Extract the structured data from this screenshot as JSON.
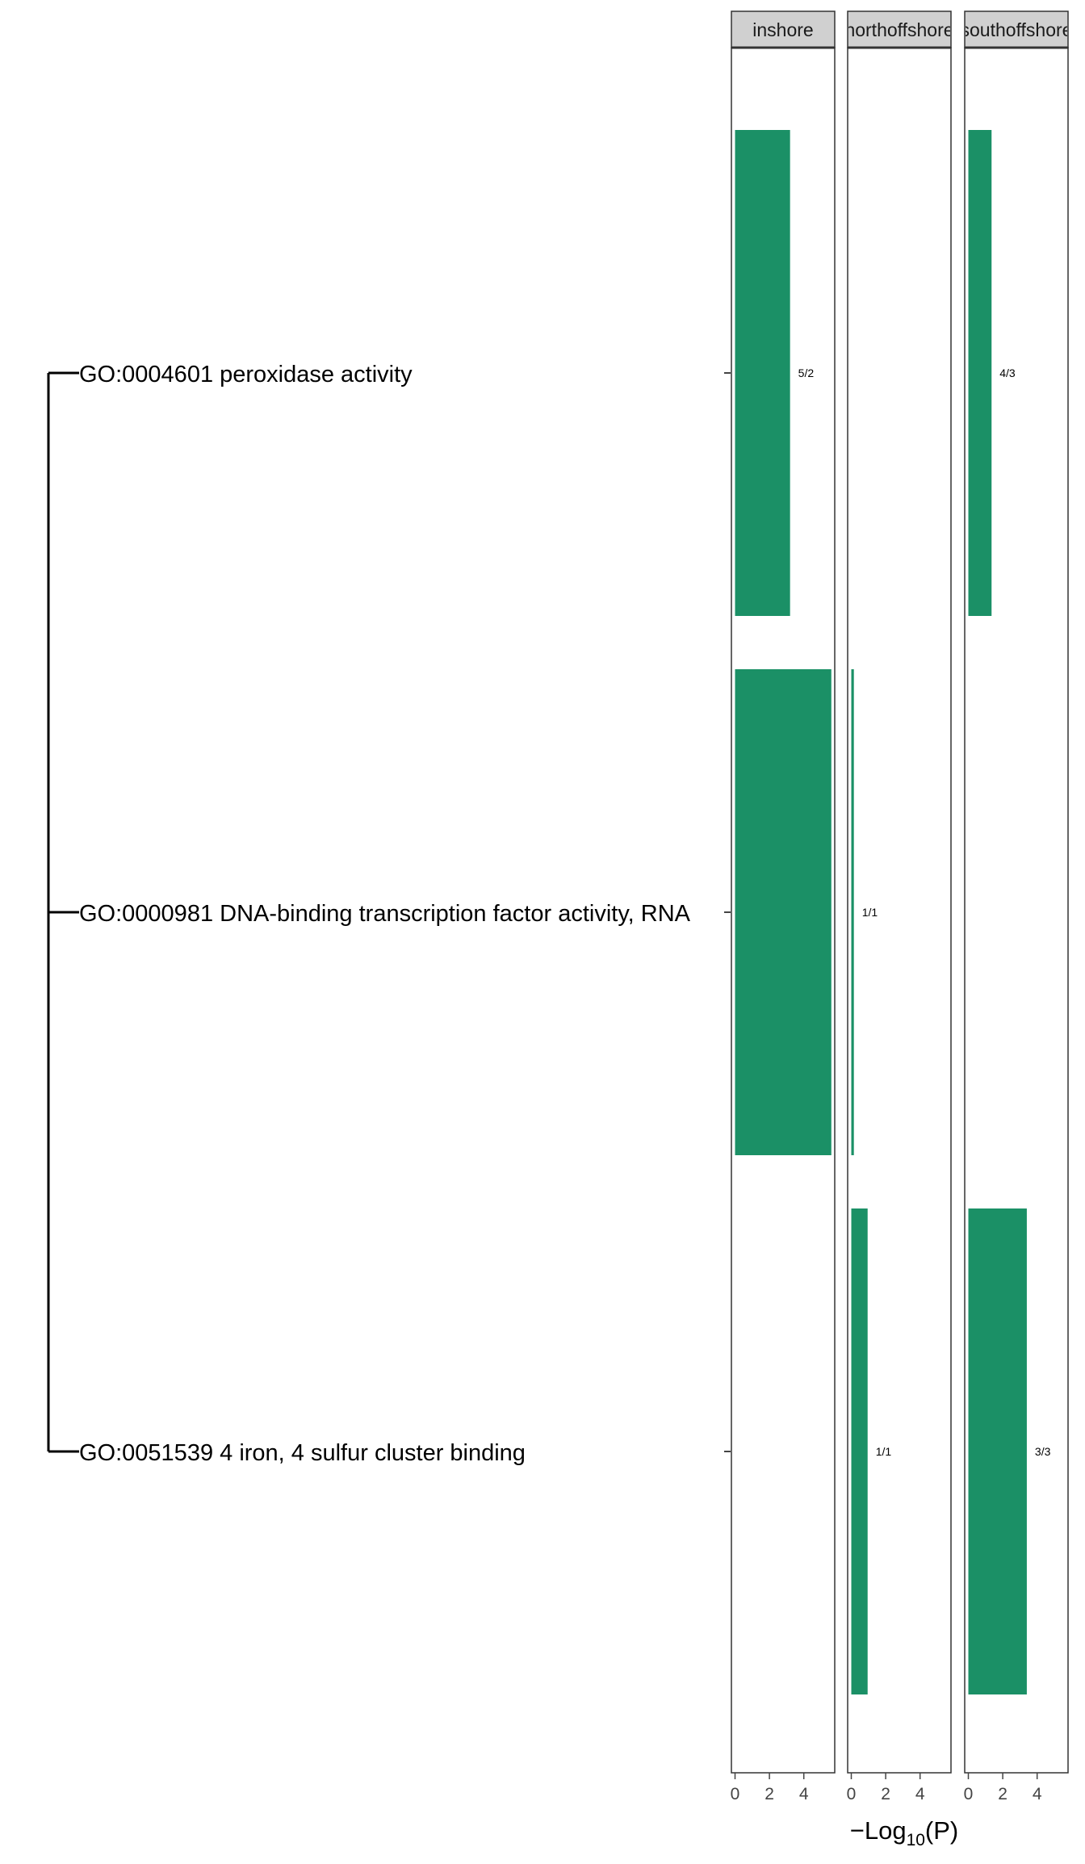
{
  "colors": {
    "bar": "#1b9066",
    "strip": "#d0d0d0",
    "border": "#333333",
    "text": "#000000",
    "tick": "#444444"
  },
  "chart_data": {
    "type": "bar",
    "orientation": "horizontal",
    "facet_strips": [
      "inshore",
      "northoffshore",
      "southoffshore"
    ],
    "categories": [
      "GO:0004601 peroxidase activity",
      "GO:0000981 DNA-binding transcription factor activity, RNA",
      "GO:0051539 4 iron, 4 sulfur cluster binding"
    ],
    "series": [
      {
        "facet": "inshore",
        "values": [
          3.2,
          5.6,
          null
        ],
        "labels": [
          "5/2",
          "",
          ""
        ]
      },
      {
        "facet": "northoffshore",
        "values": [
          null,
          0.15,
          0.95
        ],
        "labels": [
          "",
          "1/1",
          "1/1"
        ]
      },
      {
        "facet": "southoffshore",
        "values": [
          1.35,
          null,
          3.4
        ],
        "labels": [
          "4/3",
          "",
          "3/3"
        ]
      }
    ],
    "x_ticks": [
      0,
      2,
      4
    ],
    "xlim": [
      -0.2,
      5.85
    ],
    "xlabel_prefix": "−Log",
    "xlabel_subscript": "10",
    "xlabel_suffix": "(P)"
  }
}
